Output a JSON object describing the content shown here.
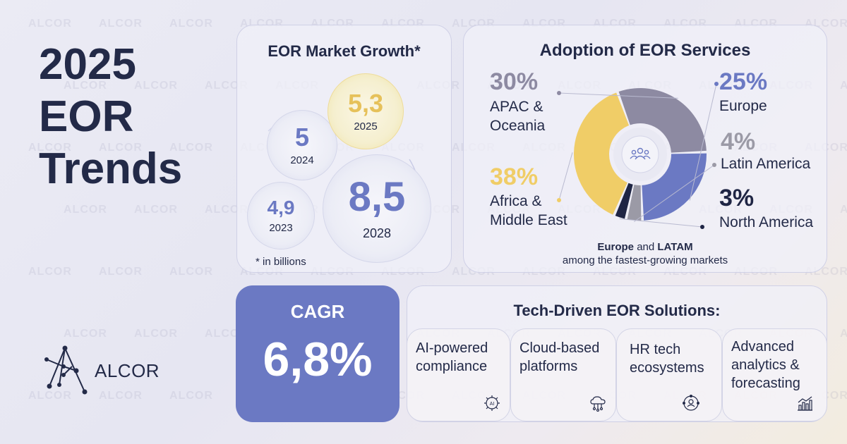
{
  "heading": {
    "line1": "2025",
    "line2": "EOR",
    "line3": "Trends"
  },
  "brand": {
    "name": "ALCOR",
    "watermark": "ALCOR"
  },
  "market_growth": {
    "title": "EOR Market Growth*",
    "footnote": "* in billions",
    "bubbles": [
      {
        "year": "2023",
        "value": "4,9"
      },
      {
        "year": "2024",
        "value": "5"
      },
      {
        "year": "2025",
        "value": "5,3"
      },
      {
        "year": "2028",
        "value": "8,5"
      }
    ]
  },
  "adoption": {
    "title": "Adoption of EOR Services",
    "caption_bold_1": "Europe",
    "caption_and": "and",
    "caption_bold_2": "LATAM",
    "caption_line2": "among the fastest-growing markets",
    "icon": "people-group-icon"
  },
  "cagr": {
    "label": "CAGR",
    "value": "6,8%"
  },
  "tech": {
    "title": "Tech-Driven EOR Solutions:",
    "items": [
      {
        "line1": "AI-powered",
        "line2": "compliance",
        "line3": "",
        "icon": "ai-chip-icon"
      },
      {
        "line1": "Cloud-based",
        "line2": "platforms",
        "line3": "",
        "icon": "cloud-network-icon"
      },
      {
        "line1": "HR tech",
        "line2": "ecosystems",
        "line3": "",
        "icon": "user-network-icon"
      },
      {
        "line1": "Advanced",
        "line2": "analytics &",
        "line3": "forecasting",
        "icon": "bar-chart-icon"
      }
    ]
  },
  "colors": {
    "navy": "#232a48",
    "blue": "#6b79c3",
    "gold": "#f0cd67",
    "grey_purple": "#8d8aa2",
    "grey": "#9b9aa6",
    "dark": "#1f2544"
  },
  "chart_data": [
    {
      "type": "pie",
      "title": "Adoption of EOR Services",
      "categories": [
        "APAC & Oceania",
        "Europe",
        "Latin America",
        "North America",
        "Africa & Middle East"
      ],
      "values": [
        30,
        25,
        4,
        3,
        38
      ],
      "value_labels": [
        "30%",
        "25%",
        "4%",
        "3%",
        "38%"
      ],
      "unit": "%"
    },
    {
      "type": "bubble",
      "title": "EOR Market Growth*",
      "categories": [
        "2023",
        "2024",
        "2025",
        "2028"
      ],
      "values": [
        4.9,
        5,
        5.3,
        8.5
      ],
      "unit": "billions"
    }
  ]
}
